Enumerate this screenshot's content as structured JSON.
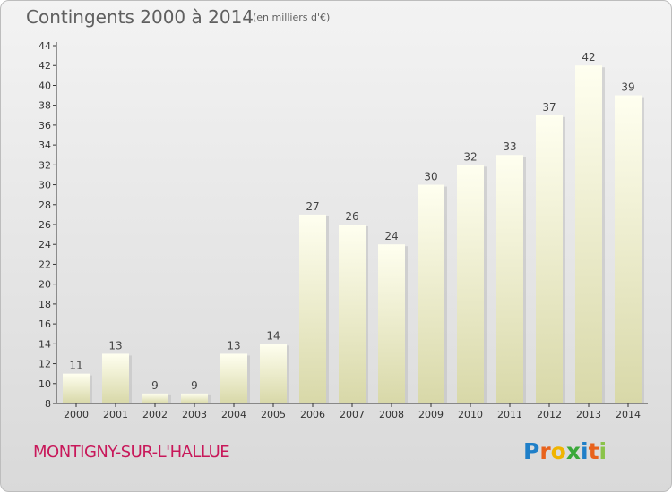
{
  "header": {
    "title": "Contingents 2000 à 2014",
    "unit": "(en milliers d'€)"
  },
  "footer": {
    "commune": "MONTIGNY-SUR-L'HALLUE",
    "logo_text": "Proxiti",
    "logo_colors": [
      "#1f7fc8",
      "#e8621c",
      "#f0b400",
      "#3aa83a",
      "#1f7fc8",
      "#e8621c",
      "#8bc34a"
    ]
  },
  "colors": {
    "title": "#5f5f5f",
    "commune": "#c8185a",
    "bar_top": "#fffff0",
    "bar_bottom": "#d8d8a8",
    "axis": "#333333"
  },
  "chart_data": {
    "type": "bar",
    "title": "Contingents 2000 à 2014",
    "subtitle": "(en milliers d'€)",
    "categories": [
      "2000",
      "2001",
      "2002",
      "2003",
      "2004",
      "2005",
      "2006",
      "2007",
      "2008",
      "2009",
      "2010",
      "2011",
      "2012",
      "2013",
      "2014"
    ],
    "values": [
      11,
      13,
      9,
      9,
      13,
      14,
      27,
      26,
      24,
      30,
      32,
      33,
      37,
      42,
      39
    ],
    "ylim": [
      8,
      44
    ],
    "yticks": [
      8,
      10,
      12,
      14,
      16,
      18,
      20,
      22,
      24,
      26,
      28,
      30,
      32,
      34,
      36,
      38,
      40,
      42,
      44
    ],
    "grid": false,
    "data_labels": true
  }
}
